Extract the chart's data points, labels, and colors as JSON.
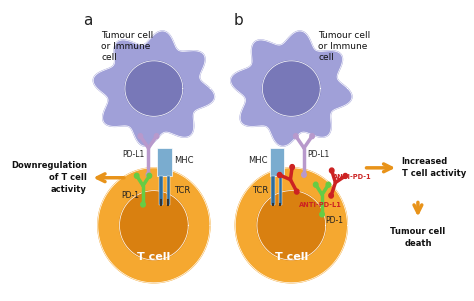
{
  "background_color": "#ffffff",
  "panel_a_label": "a",
  "panel_b_label": "b",
  "tumour_cell_text_a": "Tumour cell\nor Immune\ncell",
  "tumour_cell_text_b": "Tumour cell\nor Immune\ncell",
  "t_cell_text": "T cell",
  "pd_l1_label": "PD-L1",
  "pd_1_label": "PD-1",
  "mhc_label": "MHC",
  "tcr_label": "TCR",
  "anti_pd_1_label": "ANTI-PD-1",
  "anti_pd_l1_label": "ANTI-PD-L1",
  "downreg_text": "Downregulation\nof T cell\nactivity",
  "increased_text": "Increased\nT cell activity",
  "tumour_death_text": "Tumour cell\ndeath",
  "tumour_outer_color": "#a0a0d8",
  "tumour_inner_color": "#8888c8",
  "tumour_nucleus_color": "#7878b8",
  "t_cell_outer_color": "#f5a830",
  "t_cell_nucleus_color": "#d98010",
  "mhc_outer_color": "#7aaccf",
  "mhc_inner_color": "#2e6e9e",
  "pd_l1_color": "#b899cc",
  "pd_1_a_color": "#66cc44",
  "pd_1_b_color": "#66cc44",
  "anti_color": "#cc2222",
  "arrow_orange": "#e8931a",
  "label_color": "#222222",
  "bold_label_color": "#111111"
}
